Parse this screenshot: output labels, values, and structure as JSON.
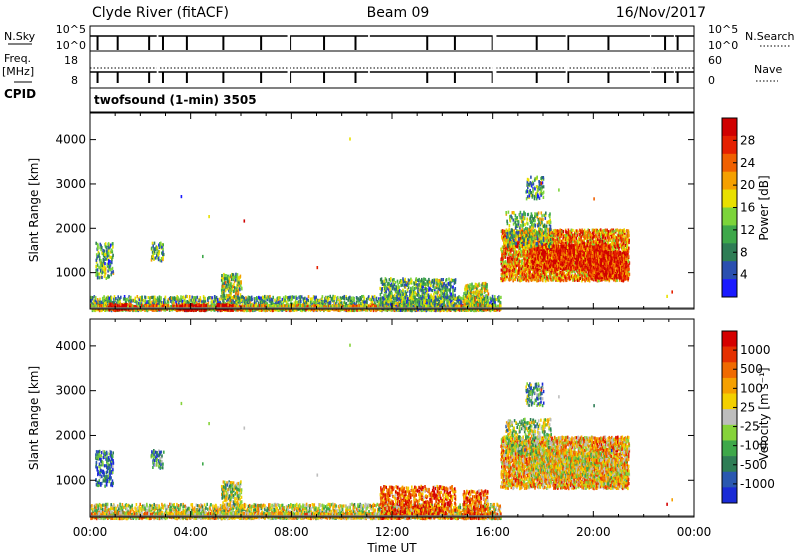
{
  "header": {
    "station": "Clyde River (fitACF)",
    "beam": "Beam 09",
    "date": "16/Nov/2017"
  },
  "status_panel": {
    "left_labels": [
      "N.Sky",
      "Freq.",
      "[MHz]",
      "CPID"
    ],
    "right_labels": [
      "N.Search",
      "Nave"
    ],
    "nsky_ticks": [
      "10^5",
      "10^0"
    ],
    "nsearch_ticks": [
      "10^5",
      "10^0"
    ],
    "freq_ticks": [
      "18",
      "8"
    ],
    "nave_ticks": [
      "60",
      "0"
    ],
    "cpid_text": "twofsound (1-min) 3505"
  },
  "chart_data": [
    {
      "type": "heatmap",
      "name": "power",
      "ylabel": "Slant Range [km]",
      "xlabel": "Time UT",
      "xlim": [
        0,
        24
      ],
      "ylim": [
        180,
        4600
      ],
      "x_ticks": [
        "00:00",
        "04:00",
        "08:00",
        "12:00",
        "16:00",
        "20:00",
        "00:00"
      ],
      "y_ticks": [
        1000,
        2000,
        3000,
        4000
      ],
      "colorbar": {
        "label": "Power [dB]",
        "ticks": [
          "4",
          "8",
          "12",
          "16",
          "20",
          "24",
          "28"
        ],
        "colors": [
          "#1a1aff",
          "#2a4fb0",
          "#2e7d55",
          "#3ea84a",
          "#7cd43a",
          "#e8e000",
          "#f5a000",
          "#f06000",
          "#e52000",
          "#d00000"
        ]
      }
    },
    {
      "type": "heatmap",
      "name": "velocity",
      "ylabel": "Slant Range [km]",
      "xlabel": "Time UT",
      "xlim": [
        0,
        24
      ],
      "ylim": [
        180,
        4600
      ],
      "x_ticks": [
        "00:00",
        "04:00",
        "08:00",
        "12:00",
        "16:00",
        "20:00",
        "00:00"
      ],
      "y_ticks": [
        1000,
        2000,
        3000,
        4000
      ],
      "colorbar": {
        "label": "Velocity [m s⁻¹]",
        "ticks": [
          "1000",
          "500",
          "100",
          "25",
          "-25",
          "-100",
          "-500",
          "-1000"
        ],
        "colors": [
          "#1a2bd6",
          "#2a58b0",
          "#2e7d55",
          "#3ea84a",
          "#86d33a",
          "#bdbdbd",
          "#f3d000",
          "#f5a000",
          "#f06a00",
          "#e53000",
          "#d50000"
        ]
      }
    }
  ],
  "x_axis_label": "Time UT"
}
